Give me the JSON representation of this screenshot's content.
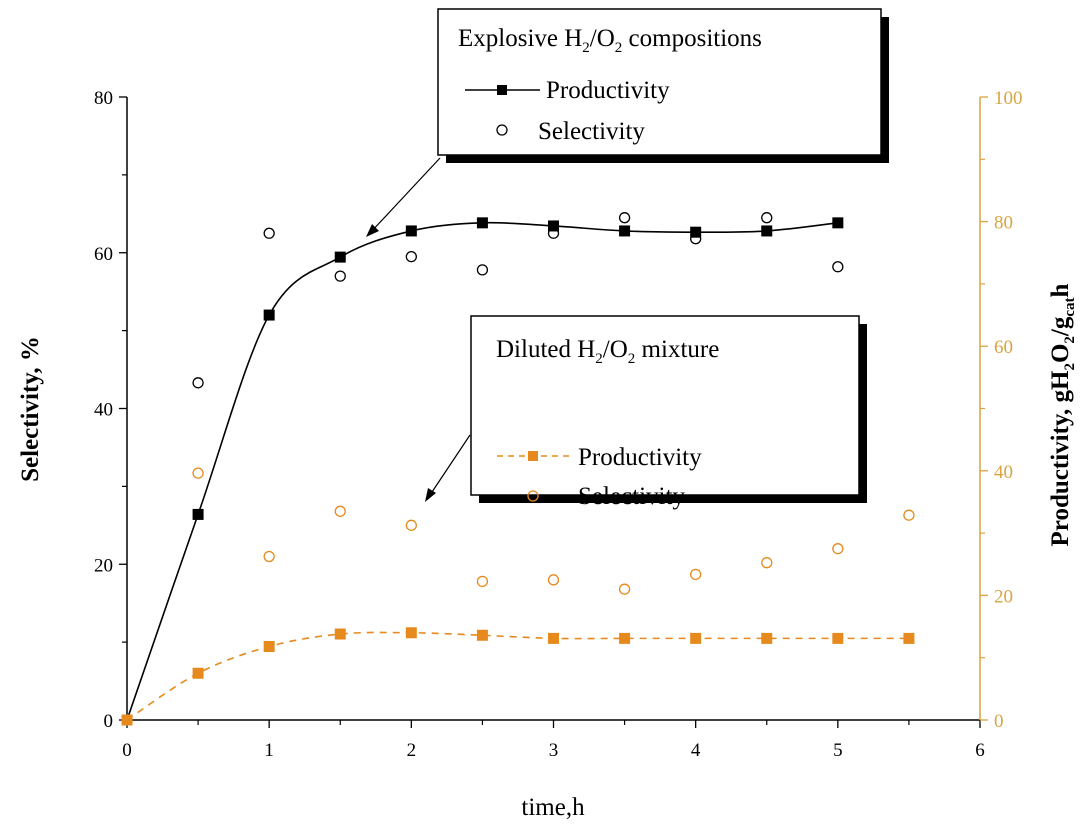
{
  "chart_data": {
    "type": "line",
    "xlabel": "time,h",
    "ylabel_left": "Selectivity, %",
    "ylabel_right": {
      "main": "Productivity, gH",
      "sub1": "2",
      "mid": "O",
      "sub2": "2",
      "slash": "/g",
      "sub3": "cat",
      "end": "h"
    },
    "x_ticks": [
      "0",
      "1",
      "2",
      "3",
      "4",
      "5",
      "6"
    ],
    "y_left_ticks": [
      "0",
      "20",
      "40",
      "60",
      "80"
    ],
    "y_right_ticks": [
      "0",
      "20",
      "40",
      "60",
      "80",
      "100"
    ],
    "xlim": [
      0,
      6
    ],
    "ylim_left": [
      0,
      80
    ],
    "ylim_right": [
      0,
      100
    ],
    "grid": false,
    "colors": {
      "black": "#000000",
      "orange": "#e68a1e",
      "right_axis": "#d9a441"
    },
    "legends": [
      {
        "group": "Explosive",
        "title": {
          "pre": "Explosive H",
          "sub1": "2",
          "mid": "/O",
          "sub2": "2",
          "post": " compositions"
        },
        "productivity_label": "Productivity",
        "selectivity_label": "Selectivity"
      },
      {
        "group": "Diluted",
        "title": {
          "pre": "Diluted H",
          "sub1": "2",
          "mid": "/O",
          "sub2": "2",
          "post": " mixture"
        },
        "productivity_label": "Productivity",
        "selectivity_label": "Selectivity"
      }
    ],
    "series": [
      {
        "name": "Productivity",
        "group": "Explosive",
        "axis": "right",
        "style": "solid-square",
        "color": "#000000",
        "x": [
          0,
          0.5,
          1,
          1.5,
          2,
          2.5,
          3,
          3.5,
          4,
          4.5,
          5
        ],
        "y": [
          0,
          33,
          65,
          74.3,
          78.5,
          79.8,
          79.3,
          78.5,
          78.3,
          78.5,
          79.8
        ]
      },
      {
        "name": "Selectivity",
        "group": "Explosive",
        "axis": "left",
        "style": "open-circle",
        "color": "#000000",
        "x": [
          0.5,
          1,
          1.5,
          2,
          2.5,
          3,
          3.5,
          4,
          4.5,
          5
        ],
        "y": [
          43.3,
          62.5,
          57,
          59.5,
          57.8,
          62.5,
          64.5,
          61.8,
          64.5,
          58.2
        ]
      },
      {
        "name": "Productivity",
        "group": "Diluted",
        "axis": "right",
        "style": "dashed-square",
        "color": "#e68a1e",
        "x": [
          0,
          0.5,
          1,
          1.5,
          2,
          2.5,
          3,
          3.5,
          4,
          4.5,
          5,
          5.5
        ],
        "y": [
          0,
          7.5,
          11.8,
          13.8,
          14,
          13.6,
          13.1,
          13.1,
          13.1,
          13.1,
          13.1,
          13.1
        ]
      },
      {
        "name": "Selectivity",
        "group": "Diluted",
        "axis": "left",
        "style": "open-circle",
        "color": "#e68a1e",
        "x": [
          0.5,
          1,
          1.5,
          2,
          2.5,
          3,
          3.5,
          4,
          4.5,
          5,
          5.5
        ],
        "y": [
          31.7,
          21,
          26.8,
          25,
          17.8,
          18,
          16.8,
          18.7,
          20.2,
          22,
          26.3
        ]
      }
    ]
  }
}
